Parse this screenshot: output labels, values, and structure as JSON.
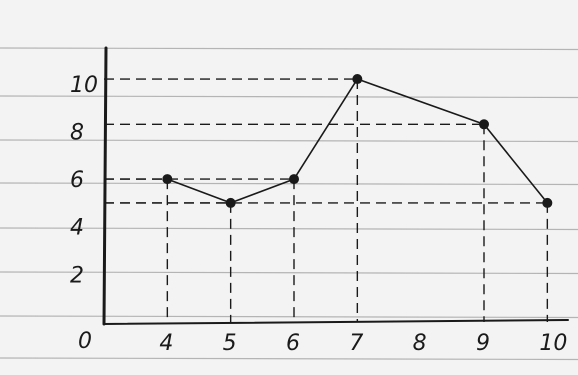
{
  "chart_data": {
    "type": "line",
    "style": "hand-drawn on ruled notebook paper",
    "x": [
      4,
      5,
      6,
      7,
      9,
      10
    ],
    "y": [
      6,
      5,
      6,
      10.2,
      8.3,
      5
    ],
    "x_tick_labels": [
      "4",
      "5",
      "6",
      "7",
      "8",
      "9",
      "10"
    ],
    "y_tick_labels": [
      "0",
      "2",
      "4",
      "6",
      "8",
      "10"
    ],
    "origin_label": "0",
    "xlim": [
      3,
      10.2
    ],
    "ylim": [
      0,
      11
    ],
    "dashed_guides": true,
    "title": "",
    "xlabel": "",
    "ylabel": ""
  },
  "colors": {
    "paper": "#f3f3f3",
    "rule_line": "#9a9a9a",
    "ink": "#1a1a1a"
  }
}
